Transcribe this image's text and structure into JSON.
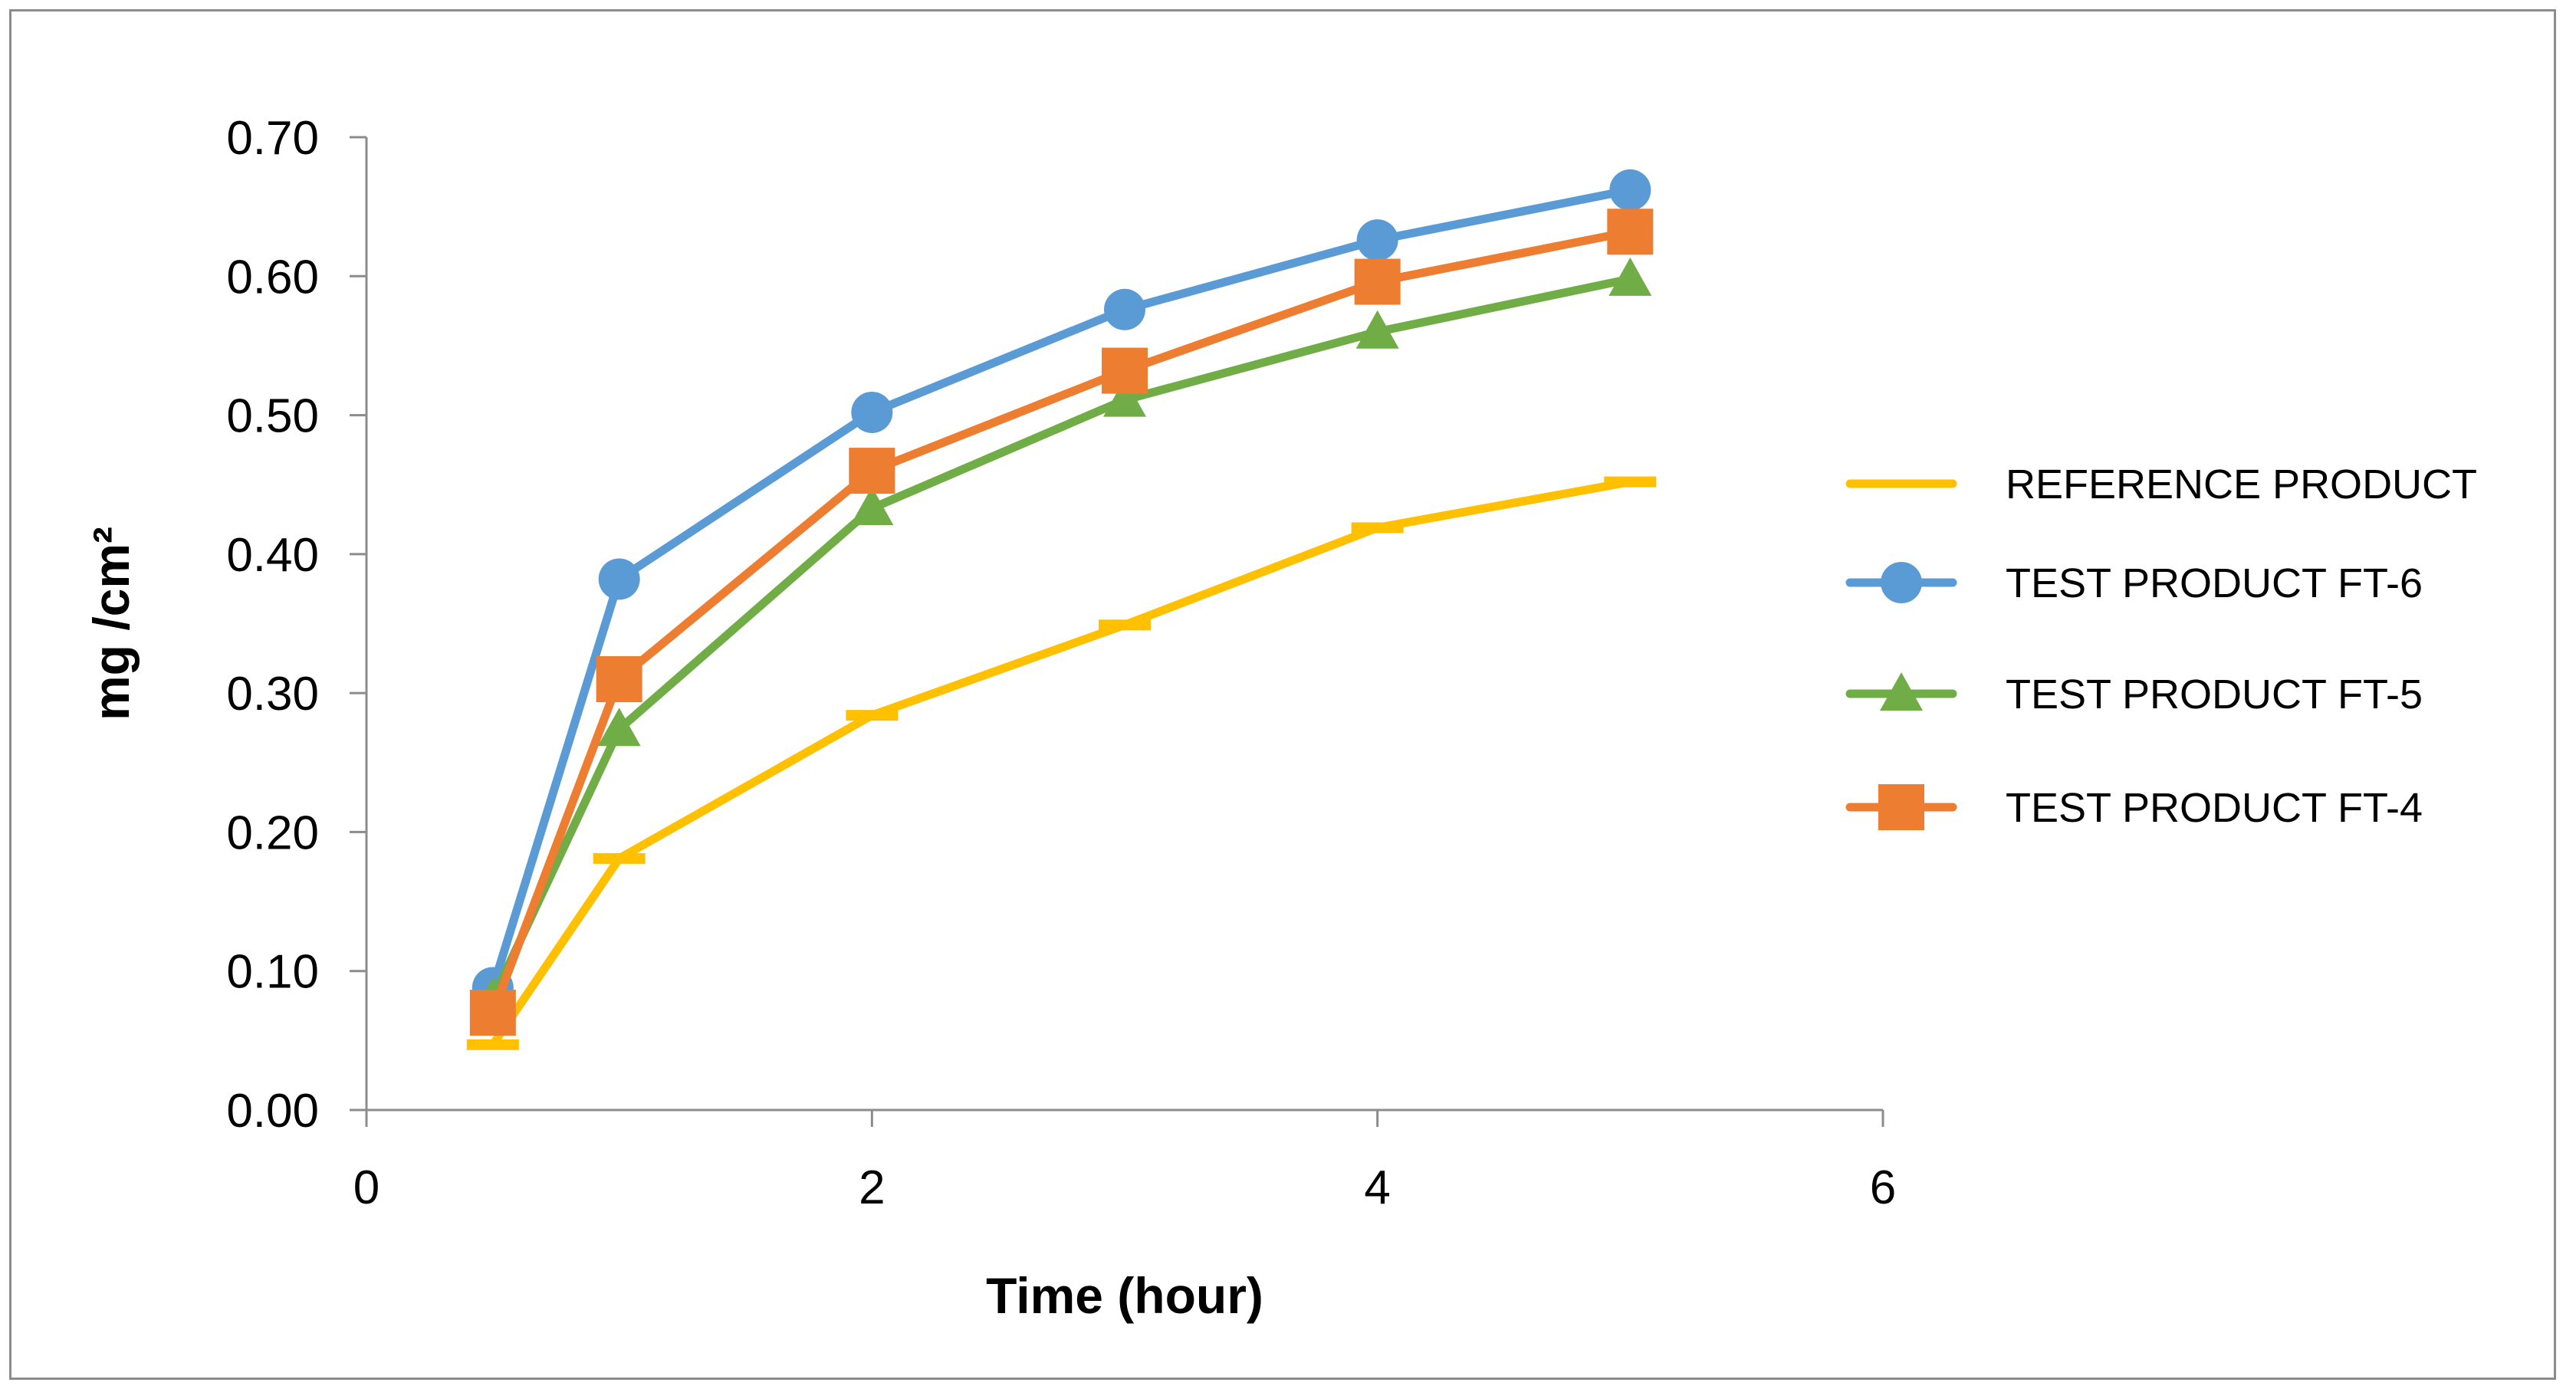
{
  "chart_data": {
    "type": "line",
    "title": "",
    "xlabel": "Time (hour)",
    "ylabel": "mg /cm²",
    "xlim": [
      0,
      6
    ],
    "ylim": [
      0,
      0.7
    ],
    "x_ticks": [
      "0",
      "2",
      "4",
      "6"
    ],
    "y_ticks": [
      "0.00",
      "0.10",
      "0.20",
      "0.30",
      "0.40",
      "0.50",
      "0.60",
      "0.70"
    ],
    "grid": false,
    "legend_position": "right",
    "x": [
      0.5,
      1,
      2,
      3,
      4,
      5
    ],
    "series": [
      {
        "name": "REFERENCE PRODUCT",
        "color": "#FFC000",
        "marker": "dash",
        "values": [
          0.047,
          0.181,
          0.284,
          0.349,
          0.419,
          0.452
        ]
      },
      {
        "name": "TEST PRODUCT FT-6",
        "color": "#5B9BD5",
        "marker": "circle",
        "values": [
          0.088,
          0.382,
          0.502,
          0.576,
          0.626,
          0.662
        ]
      },
      {
        "name": "TEST PRODUCT FT-5",
        "color": "#70AD47",
        "marker": "triangle",
        "values": [
          0.08,
          0.274,
          0.433,
          0.511,
          0.56,
          0.598
        ]
      },
      {
        "name": "TEST PRODUCT FT-4",
        "color": "#ED7D31",
        "marker": "square",
        "values": [
          0.07,
          0.31,
          0.46,
          0.532,
          0.596,
          0.632
        ]
      }
    ]
  }
}
